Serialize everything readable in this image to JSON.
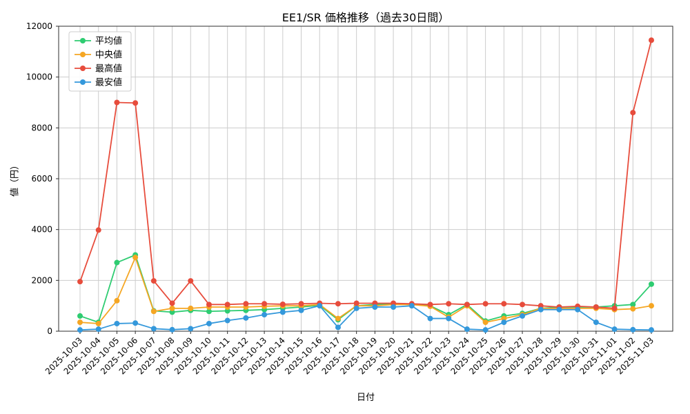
{
  "chart_data": {
    "type": "line",
    "title": "EE1/SR 価格推移（過去30日間）",
    "xlabel": "日付",
    "ylabel": "値（円）",
    "ylim": [
      0,
      12000
    ],
    "yticks": [
      0,
      2000,
      4000,
      6000,
      8000,
      10000,
      12000
    ],
    "grid": true,
    "grid_color": "#cccccc",
    "legend_position": "upper left",
    "x": [
      "2025-10-03",
      "2025-10-04",
      "2025-10-05",
      "2025-10-06",
      "2025-10-07",
      "2025-10-08",
      "2025-10-09",
      "2025-10-10",
      "2025-10-11",
      "2025-10-12",
      "2025-10-13",
      "2025-10-14",
      "2025-10-15",
      "2025-10-16",
      "2025-10-17",
      "2025-10-18",
      "2025-10-19",
      "2025-10-20",
      "2025-10-21",
      "2025-10-22",
      "2025-10-23",
      "2025-10-24",
      "2025-10-25",
      "2025-10-26",
      "2025-10-27",
      "2025-10-28",
      "2025-10-29",
      "2025-10-30",
      "2025-10-31",
      "2025-11-01",
      "2025-11-02",
      "2025-11-03"
    ],
    "series": [
      {
        "id": "average",
        "name": "平均値",
        "color": "#2ecc71",
        "values": [
          600,
          350,
          2700,
          3000,
          800,
          750,
          820,
          780,
          800,
          820,
          850,
          900,
          950,
          1020,
          450,
          1000,
          1050,
          1060,
          1050,
          1000,
          650,
          1050,
          400,
          600,
          700,
          900,
          950,
          950,
          950,
          1000,
          1050,
          1850
        ]
      },
      {
        "id": "median",
        "name": "中央値",
        "color": "#f5a623",
        "values": [
          350,
          300,
          1200,
          2900,
          780,
          900,
          900,
          950,
          950,
          950,
          980,
          1000,
          1000,
          1050,
          500,
          1000,
          1000,
          1050,
          1050,
          980,
          550,
          1000,
          350,
          500,
          650,
          900,
          900,
          900,
          900,
          850,
          880,
          1000
        ]
      },
      {
        "id": "highest",
        "name": "最高値",
        "color": "#e74c3c",
        "values": [
          1950,
          3980,
          9000,
          8980,
          1980,
          1100,
          1980,
          1050,
          1050,
          1080,
          1080,
          1060,
          1080,
          1100,
          1080,
          1100,
          1100,
          1100,
          1080,
          1050,
          1080,
          1050,
          1080,
          1080,
          1050,
          1000,
          950,
          980,
          950,
          900,
          8600,
          11450
        ]
      },
      {
        "id": "lowest",
        "name": "最安値",
        "color": "#3498db",
        "values": [
          50,
          80,
          300,
          320,
          100,
          60,
          100,
          300,
          420,
          520,
          650,
          750,
          820,
          1000,
          150,
          900,
          950,
          950,
          1000,
          500,
          500,
          80,
          50,
          350,
          600,
          850,
          850,
          850,
          350,
          80,
          60,
          50
        ]
      }
    ]
  }
}
